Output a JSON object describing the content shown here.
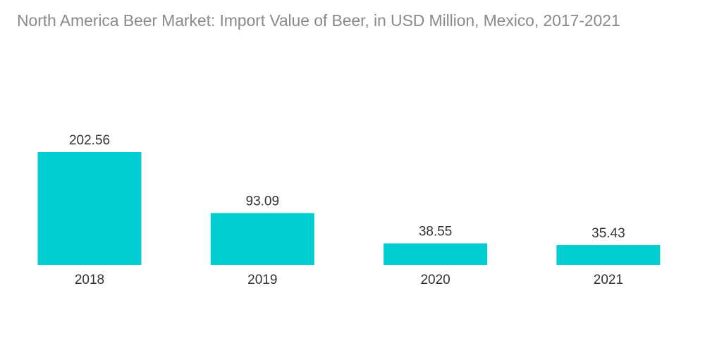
{
  "chart_data": {
    "type": "bar",
    "title": "North America Beer Market: Import Value of Beer, in USD Million, Mexico, 2017-2021",
    "categories": [
      "2018",
      "2019",
      "2020",
      "2021"
    ],
    "values": [
      202.56,
      93.09,
      38.55,
      35.43
    ],
    "value_labels": [
      "202.56",
      "93.09",
      "38.55",
      "35.43"
    ],
    "xlabel": "",
    "ylabel": "",
    "ylim": [
      0,
      202.56
    ],
    "grid": false,
    "legend": "none",
    "bar_color": "#00cdd0"
  }
}
